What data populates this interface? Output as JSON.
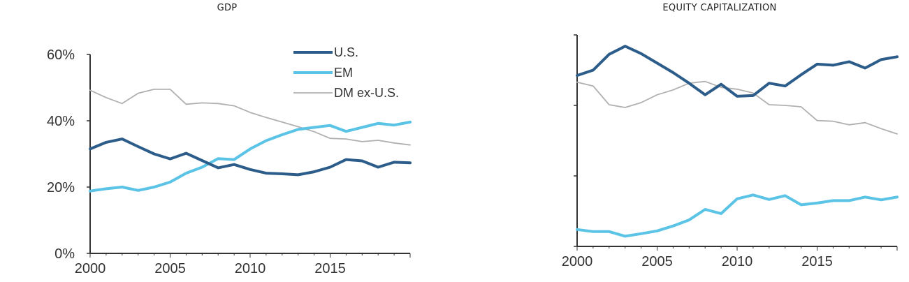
{
  "colors": {
    "us": "#2c5d8a",
    "em": "#5bc4e6",
    "dm": "#b0b0b0",
    "axis": "#333333"
  },
  "chart_data": [
    {
      "type": "line",
      "title": "GDP",
      "x": [
        2000,
        2001,
        2002,
        2003,
        2004,
        2005,
        2006,
        2007,
        2008,
        2009,
        2010,
        2011,
        2012,
        2013,
        2014,
        2015,
        2016,
        2017,
        2018,
        2019,
        2020
      ],
      "xticks": [
        "2000",
        "2005",
        "2010",
        "2015"
      ],
      "yticks": [
        "0%",
        "20%",
        "40%",
        "60%"
      ],
      "ylim": [
        0,
        60
      ],
      "series": [
        {
          "name": "U.S.",
          "key": "us",
          "values": [
            31.5,
            33.5,
            34.5,
            32.2,
            30.0,
            28.5,
            30.2,
            28.0,
            25.8,
            26.8,
            25.3,
            24.2,
            24.0,
            23.7,
            24.6,
            26.0,
            28.3,
            27.9,
            26.0,
            27.5,
            27.3
          ]
        },
        {
          "name": "EM",
          "key": "em",
          "values": [
            18.8,
            19.5,
            20.0,
            19.0,
            20.0,
            21.5,
            24.2,
            26.0,
            28.6,
            28.3,
            31.5,
            34.0,
            35.8,
            37.4,
            38.0,
            38.6,
            36.8,
            38.0,
            39.2,
            38.7,
            39.6
          ]
        },
        {
          "name": "DM ex-U.S.",
          "key": "dm",
          "values": [
            49.2,
            47.0,
            45.2,
            48.3,
            49.5,
            49.5,
            45.0,
            45.4,
            45.2,
            44.5,
            42.5,
            41.0,
            39.6,
            38.2,
            36.7,
            34.7,
            34.5,
            33.7,
            34.1,
            33.3,
            32.7
          ]
        }
      ],
      "legend": "top-right"
    },
    {
      "type": "line",
      "title": "EQUITY CAPITALIZATION",
      "x": [
        2000,
        2001,
        2002,
        2003,
        2004,
        2005,
        2006,
        2007,
        2008,
        2009,
        2010,
        2011,
        2012,
        2013,
        2014,
        2015,
        2016,
        2017,
        2018,
        2019,
        2020
      ],
      "xticks": [
        "2000",
        "2005",
        "2010",
        "2015"
      ],
      "yticks": [
        "",
        "",
        "",
        ""
      ],
      "ylim": [
        0,
        60
      ],
      "series": [
        {
          "key": "us",
          "values": [
            48.5,
            50.0,
            54.5,
            56.8,
            54.7,
            52.0,
            49.3,
            46.3,
            43.0,
            46.0,
            42.6,
            42.8,
            46.3,
            45.5,
            48.7,
            51.7,
            51.4,
            52.4,
            50.6,
            53.0,
            53.8
          ]
        },
        {
          "key": "em",
          "values": [
            4.8,
            4.2,
            4.2,
            2.9,
            3.6,
            4.4,
            5.8,
            7.5,
            10.5,
            9.3,
            13.5,
            14.6,
            13.3,
            14.4,
            11.8,
            12.3,
            13.0,
            13.0,
            14.0,
            13.2,
            14.0
          ]
        },
        {
          "key": "dm",
          "values": [
            46.6,
            45.5,
            40.2,
            39.4,
            40.8,
            43.0,
            44.4,
            46.3,
            46.8,
            45.1,
            44.6,
            43.5,
            40.2,
            40.0,
            39.6,
            35.7,
            35.5,
            34.5,
            35.1,
            33.4,
            31.9
          ]
        }
      ]
    }
  ]
}
